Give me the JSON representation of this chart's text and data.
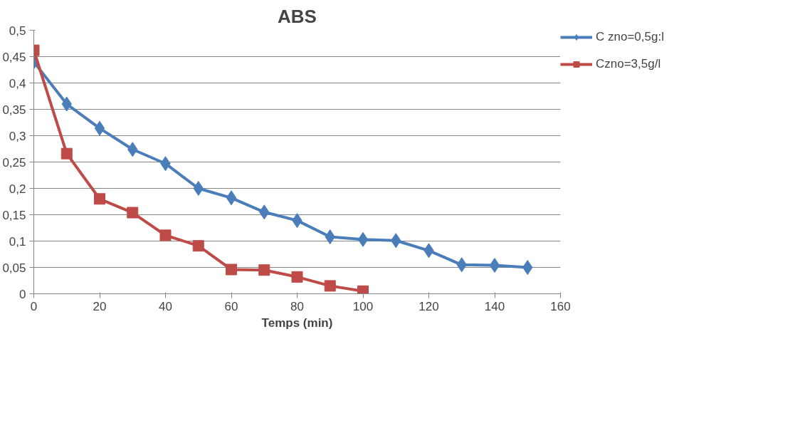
{
  "chart_data": {
    "type": "line",
    "title": "ABS",
    "xlabel": "Temps (min)",
    "xlim": [
      0,
      160
    ],
    "xticks": [
      0,
      20,
      40,
      60,
      80,
      100,
      120,
      140,
      160
    ],
    "ylim": [
      0,
      0.5
    ],
    "yticks": [
      {
        "value": 0,
        "label": "0"
      },
      {
        "value": 0.05,
        "label": "0,05"
      },
      {
        "value": 0.1,
        "label": "0,1"
      },
      {
        "value": 0.15,
        "label": "0,15"
      },
      {
        "value": 0.2,
        "label": "0,2"
      },
      {
        "value": 0.25,
        "label": "0,25"
      },
      {
        "value": 0.3,
        "label": "0,3"
      },
      {
        "value": 0.35,
        "label": "0,35"
      },
      {
        "value": 0.4,
        "label": "0,4"
      },
      {
        "value": 0.45,
        "label": "0,45"
      },
      {
        "value": 0.5,
        "label": "0,5"
      }
    ],
    "grid": "y",
    "legend": "right",
    "line_style": "solid",
    "series": [
      {
        "name": "C zno=0,5g:l",
        "color": "#4a7ebb",
        "marker": "diamond",
        "x": [
          0,
          10,
          20,
          30,
          40,
          50,
          60,
          70,
          80,
          90,
          100,
          110,
          120,
          130,
          140,
          150
        ],
        "values": [
          0.44,
          0.36,
          0.314,
          0.274,
          0.247,
          0.2,
          0.182,
          0.155,
          0.139,
          0.108,
          0.103,
          0.101,
          0.082,
          0.055,
          0.054,
          0.05
        ]
      },
      {
        "name": "Czno=3,5g/l",
        "color": "#be4b48",
        "marker": "square",
        "x": [
          0,
          10,
          20,
          30,
          40,
          50,
          60,
          70,
          80,
          90,
          100
        ],
        "values": [
          0.462,
          0.266,
          0.18,
          0.154,
          0.111,
          0.091,
          0.046,
          0.045,
          0.032,
          0.015,
          0.005
        ]
      }
    ]
  }
}
